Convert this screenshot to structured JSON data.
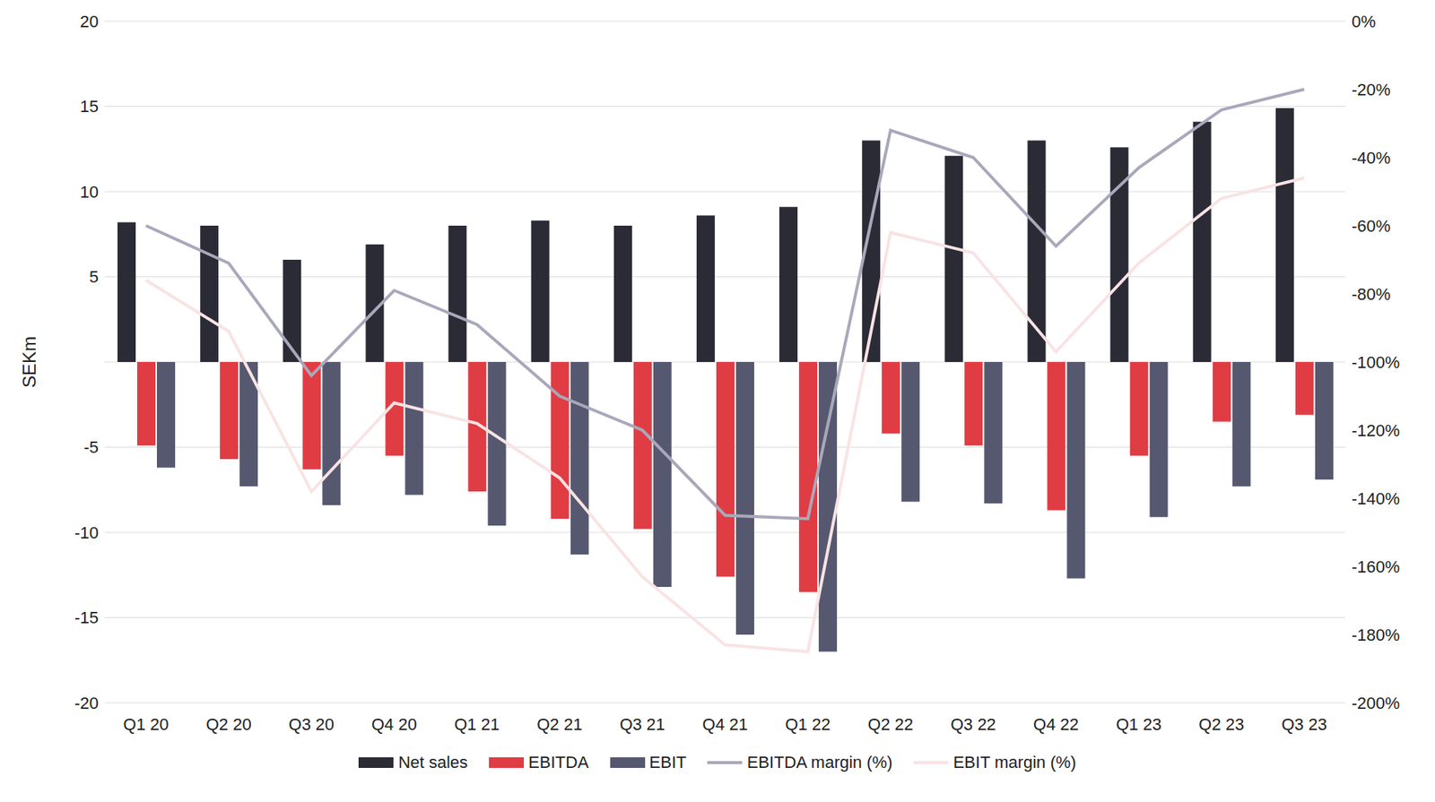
{
  "chart_data": {
    "type": "bar",
    "y_label": "SEKm",
    "categories": [
      "Q1 20",
      "Q2 20",
      "Q3 20",
      "Q4 20",
      "Q1 21",
      "Q2 21",
      "Q3 21",
      "Q4 21",
      "Q1 22",
      "Q2 22",
      "Q3 22",
      "Q4 22",
      "Q1 23",
      "Q2 23",
      "Q3 23"
    ],
    "series": [
      {
        "name": "Net sales",
        "type": "bar",
        "color": "#2b2b36",
        "values": [
          8.2,
          8.0,
          6.0,
          6.9,
          8.0,
          8.3,
          8.0,
          8.6,
          9.1,
          13.0,
          12.1,
          13.0,
          12.6,
          14.1,
          14.9
        ]
      },
      {
        "name": "EBITDA",
        "type": "bar",
        "color": "#e03c44",
        "values": [
          -4.9,
          -5.7,
          -6.3,
          -5.5,
          -7.6,
          -9.2,
          -9.8,
          -12.6,
          -13.5,
          -4.2,
          -4.9,
          -8.7,
          -5.5,
          -3.5,
          -3.1
        ]
      },
      {
        "name": "EBIT",
        "type": "bar",
        "color": "#565870",
        "values": [
          -6.2,
          -7.3,
          -8.4,
          -7.8,
          -9.6,
          -11.3,
          -13.2,
          -16.0,
          -17.0,
          -8.2,
          -8.3,
          -12.7,
          -9.1,
          -7.3,
          -6.9
        ]
      },
      {
        "name": "EBITDA margin (%)",
        "type": "line",
        "axis": "y2",
        "color": "#a9a8bb",
        "values": [
          -60,
          -71,
          -104,
          -79,
          -89,
          -110,
          -120,
          -145,
          -146,
          -32,
          -40,
          -66,
          -43,
          -26,
          -20
        ]
      },
      {
        "name": "EBIT margin (%)",
        "type": "line",
        "axis": "y2",
        "color": "#f9e3e3",
        "values": [
          -76,
          -91,
          -138,
          -112,
          -118,
          -134,
          -163,
          -183,
          -185,
          -62,
          -68,
          -97,
          -71,
          -52,
          -46
        ]
      }
    ],
    "ylim": [
      -20,
      20
    ],
    "yticks": [
      -20,
      -15,
      -10,
      -5,
      0,
      5,
      10,
      15,
      20
    ],
    "y2lim": [
      -200,
      0
    ],
    "y2ticks": [
      {
        "value": -200,
        "label": "-200%"
      },
      {
        "value": -180,
        "label": "-180%"
      },
      {
        "value": -160,
        "label": "-160%"
      },
      {
        "value": -140,
        "label": "-140%"
      },
      {
        "value": -120,
        "label": "-120%"
      },
      {
        "value": -100,
        "label": "-100%"
      },
      {
        "value": -80,
        "label": "-80%"
      },
      {
        "value": -60,
        "label": "-60%"
      },
      {
        "value": -40,
        "label": "-40%"
      },
      {
        "value": -20,
        "label": "-20%"
      },
      {
        "value": 0,
        "label": "0%"
      }
    ],
    "grid": true,
    "legend": "bottom"
  }
}
